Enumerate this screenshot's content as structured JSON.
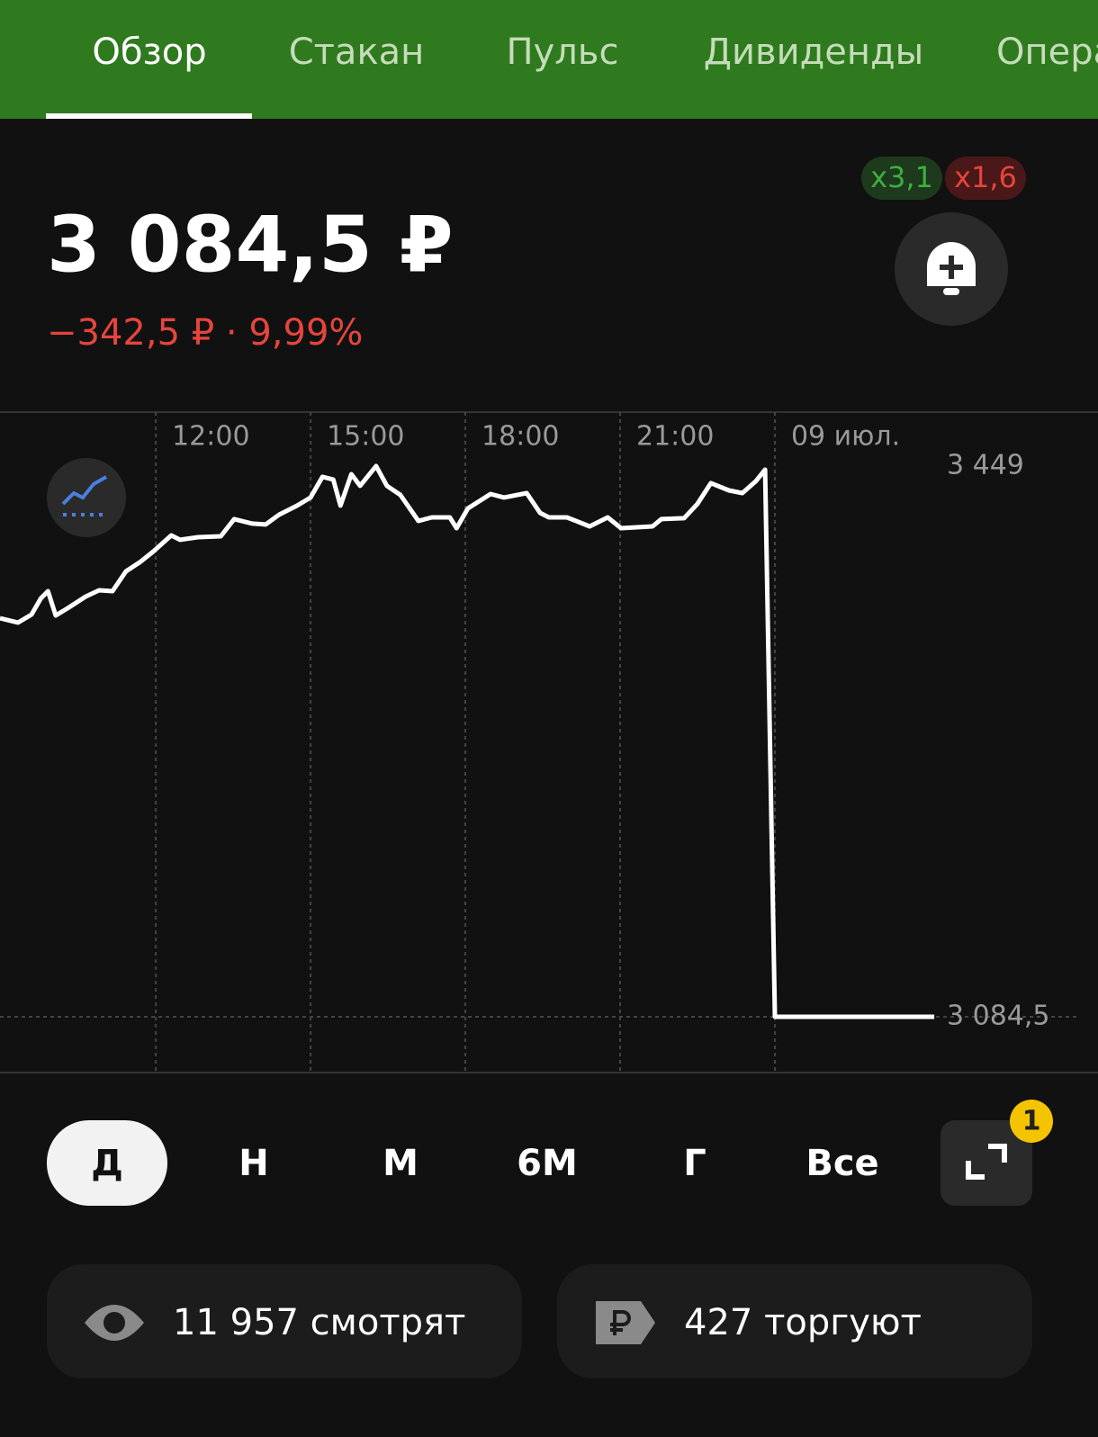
{
  "tabs": [
    "Обзор",
    "Стакан",
    "Пульс",
    "Дивиденды",
    "Операции"
  ],
  "badges": [
    "x3,1",
    "x1,6"
  ],
  "price": "3 084,5 ₽",
  "change": "−342,5 ₽ · 9,99%",
  "chart_data": {
    "type": "line",
    "color": "#ffffff",
    "grid": true,
    "x": [
      8.98,
      9.33,
      9.59,
      9.77,
      9.91,
      10.06,
      10.29,
      10.64,
      10.9,
      11.16,
      11.42,
      11.69,
      11.95,
      12.3,
      12.47,
      12.82,
      13.26,
      13.52,
      13.87,
      14.13,
      14.39,
      14.74,
      15.0,
      15.23,
      15.44,
      15.58,
      15.79,
      15.96,
      16.27,
      16.48,
      16.74,
      17.09,
      17.35,
      17.7,
      17.83,
      18.05,
      18.49,
      18.75,
      19.19,
      19.45,
      19.62,
      19.97,
      20.41,
      20.76,
      21.02,
      21.63,
      21.8,
      22.24,
      22.5,
      22.76,
      23.11,
      23.37,
      23.63,
      23.81,
      24.0,
      27.09
    ],
    "values": [
      3348.3,
      3345.4,
      3350.7,
      3361.4,
      3366.2,
      3350.1,
      3354.9,
      3362.6,
      3366.8,
      3366.2,
      3379.3,
      3385.3,
      3392.4,
      3403.1,
      3400.2,
      3401.9,
      3402.5,
      3413.9,
      3410.9,
      3410.3,
      3416.8,
      3422.8,
      3428.2,
      3441.9,
      3440.1,
      3422.8,
      3443.6,
      3435.9,
      3449,
      3435.9,
      3429.9,
      3412.7,
      3415.0,
      3415.0,
      3407.9,
      3421.0,
      3430.5,
      3428.2,
      3431.1,
      3418.0,
      3415.0,
      3415.0,
      3409.1,
      3415.0,
      3407.9,
      3409.1,
      3413.9,
      3414.5,
      3424.0,
      3437.7,
      3432.9,
      3431.1,
      3438.9,
      3446.6,
      3084.5,
      3084.5
    ],
    "xlim": [
      8.98,
      29.88
    ],
    "ylim": [
      3047.6,
      3484.7
    ],
    "xticks": [
      {
        "value": 12,
        "label": "12:00"
      },
      {
        "value": 15,
        "label": "15:00"
      },
      {
        "value": 18,
        "label": "18:00"
      },
      {
        "value": 21,
        "label": "21:00"
      },
      {
        "value": 24,
        "label": "09 июл."
      }
    ],
    "yticks": [
      {
        "value": 3449,
        "label": "3 449"
      },
      {
        "value": 3084.5,
        "label": "3 084,5"
      }
    ]
  },
  "periods": [
    "Д",
    "Н",
    "М",
    "6М",
    "Г",
    "Все"
  ],
  "notification_count": 1,
  "stats": {
    "watching": "11 957 смотрят",
    "trading": "427 торгуют"
  }
}
